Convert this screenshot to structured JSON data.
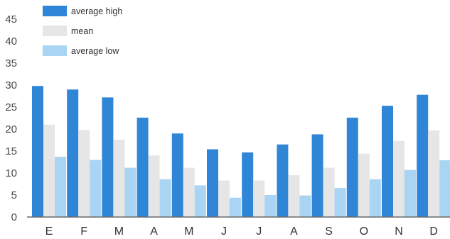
{
  "chart_data": {
    "type": "bar",
    "categories": [
      "E",
      "F",
      "M",
      "A",
      "M",
      "J",
      "J",
      "A",
      "S",
      "O",
      "N",
      "D"
    ],
    "series": [
      {
        "name": "average high",
        "color": "#2f86d6",
        "values": [
          29.8,
          29.0,
          27.2,
          22.6,
          19.0,
          15.4,
          14.7,
          16.5,
          18.8,
          22.6,
          25.3,
          27.8
        ]
      },
      {
        "name": "mean",
        "color": "#e6e6e6",
        "values": [
          21.0,
          19.8,
          17.6,
          14.0,
          11.2,
          8.3,
          8.3,
          9.5,
          11.2,
          14.4,
          17.3,
          19.7
        ]
      },
      {
        "name": "average low",
        "color": "#a9d4f3",
        "values": [
          13.7,
          13.0,
          11.2,
          8.6,
          7.2,
          4.4,
          5.0,
          4.9,
          6.6,
          8.6,
          10.7,
          12.9
        ]
      }
    ],
    "yticks": [
      0,
      5,
      10,
      15,
      20,
      25,
      30,
      35,
      40,
      45
    ],
    "ylim": [
      0,
      48
    ],
    "title": "",
    "xlabel": "",
    "ylabel": "",
    "grid": false,
    "legend_position": "top-left",
    "colors": {
      "axis": "#4a4a4a",
      "axis_line": "#6a6a6a"
    }
  }
}
